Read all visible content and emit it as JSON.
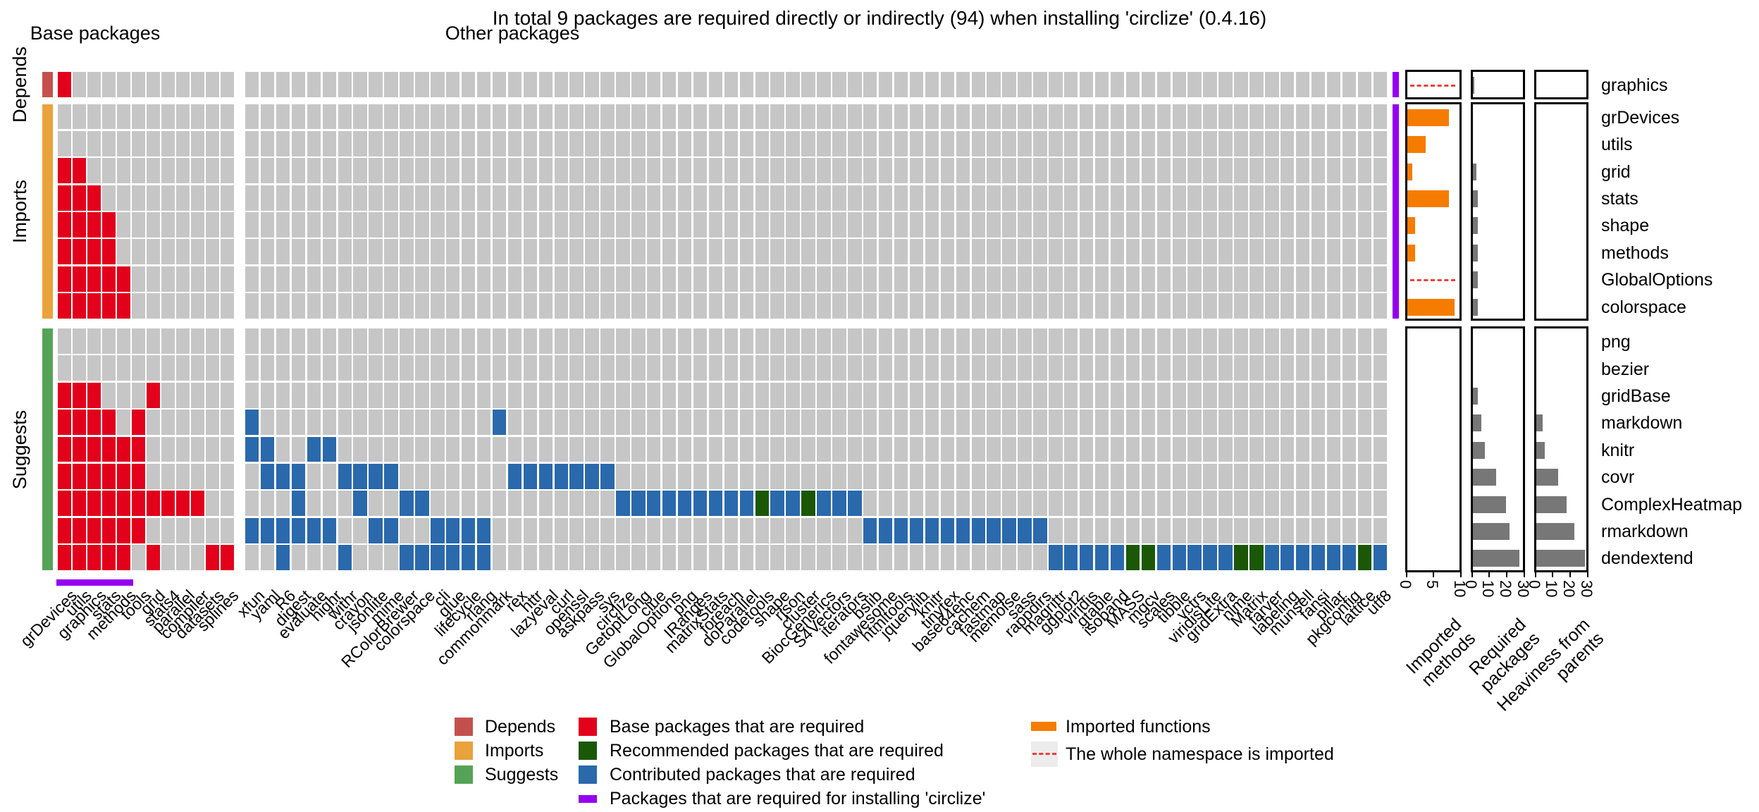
{
  "chart_data": {
    "type": "heatmap",
    "title": "In total 9 packages are required directly or indirectly (94) when installing 'circlize' (0.4.16)",
    "column_group_headers": {
      "base": "Base packages",
      "other": "Other packages"
    },
    "row_groups": [
      {
        "name": "Depends",
        "color": "#C4504E",
        "n_rows": 1
      },
      {
        "name": "Imports",
        "color": "#E9A23C",
        "n_rows": 8
      },
      {
        "name": "Suggests",
        "color": "#55A356",
        "n_rows": 9
      }
    ],
    "base_columns": [
      "grDevices",
      "utils",
      "graphics",
      "stats",
      "methods",
      "tools",
      "grid",
      "stats4",
      "parallel",
      "compiler",
      "datasets",
      "splines"
    ],
    "other_columns": [
      "xfun",
      "yaml",
      "R6",
      "digest",
      "evaluate",
      "highr",
      "withr",
      "crayon",
      "jsonlite",
      "mime",
      "RColorBrewer",
      "colorspace",
      "cli",
      "glue",
      "lifecycle",
      "rlang",
      "commonmark",
      "rex",
      "httr",
      "lazyeval",
      "curl",
      "openssl",
      "askpass",
      "sys",
      "circlize",
      "GetoptLong",
      "clue",
      "GlobalOptions",
      "png",
      "IRanges",
      "matrixStats",
      "foreach",
      "doParallel",
      "codetools",
      "shape",
      "rjson",
      "cluster",
      "BiocGenerics",
      "S4Vectors",
      "iterators",
      "bslib",
      "fontawesome",
      "htmltools",
      "jquerylib",
      "knitr",
      "tinytex",
      "base64enc",
      "cachem",
      "fastmap",
      "memoise",
      "sass",
      "rappdirs",
      "magrittr",
      "ggplot2",
      "viridis",
      "gtable",
      "isoband",
      "MASS",
      "mgcv",
      "scales",
      "tibble",
      "vctrs",
      "viridisLite",
      "gridExtra",
      "nlme",
      "Matrix",
      "farver",
      "labeling",
      "munsell",
      "fansi",
      "pillar",
      "pkgconfig",
      "lattice",
      "utf8"
    ],
    "rows": [
      {
        "name": "graphics",
        "group": "Depends",
        "base_red": [
          1
        ],
        "other_blue": [],
        "other_green": [],
        "whole_namespace": true,
        "imported_methods": 0,
        "required_packages": 1,
        "heaviness": 0
      },
      {
        "name": "grDevices",
        "group": "Imports",
        "base_red": [],
        "other_blue": [],
        "other_green": [],
        "whole_namespace": false,
        "imported_methods": 8,
        "required_packages": 0,
        "heaviness": 0
      },
      {
        "name": "utils",
        "group": "Imports",
        "base_red": [],
        "other_blue": [],
        "other_green": [],
        "whole_namespace": false,
        "imported_methods": 3.5,
        "required_packages": 0,
        "heaviness": 0
      },
      {
        "name": "grid",
        "group": "Imports",
        "base_red": [
          1,
          2
        ],
        "other_blue": [],
        "other_green": [],
        "whole_namespace": false,
        "imported_methods": 1,
        "required_packages": 2,
        "heaviness": 0
      },
      {
        "name": "stats",
        "group": "Imports",
        "base_red": [
          1,
          2,
          3
        ],
        "other_blue": [],
        "other_green": [],
        "whole_namespace": false,
        "imported_methods": 8,
        "required_packages": 3,
        "heaviness": 0
      },
      {
        "name": "shape",
        "group": "Imports",
        "base_red": [
          1,
          2,
          3,
          4
        ],
        "other_blue": [],
        "other_green": [],
        "whole_namespace": false,
        "imported_methods": 1.5,
        "required_packages": 3,
        "heaviness": 0
      },
      {
        "name": "methods",
        "group": "Imports",
        "base_red": [
          1,
          2,
          3,
          4
        ],
        "other_blue": [],
        "other_green": [],
        "whole_namespace": false,
        "imported_methods": 1.5,
        "required_packages": 3,
        "heaviness": 0
      },
      {
        "name": "GlobalOptions",
        "group": "Imports",
        "base_red": [
          1,
          2,
          3,
          4,
          5
        ],
        "other_blue": [],
        "other_green": [],
        "whole_namespace": true,
        "imported_methods": 0,
        "required_packages": 3,
        "heaviness": 0
      },
      {
        "name": "colorspace",
        "group": "Imports",
        "base_red": [
          1,
          2,
          3,
          4,
          5
        ],
        "other_blue": [],
        "other_green": [],
        "whole_namespace": false,
        "imported_methods": 9,
        "required_packages": 3,
        "heaviness": 0
      },
      {
        "name": "png",
        "group": "Suggests",
        "base_red": [],
        "other_blue": [],
        "other_green": [],
        "whole_namespace": false,
        "imported_methods": 0,
        "required_packages": 0,
        "heaviness": 0
      },
      {
        "name": "bezier",
        "group": "Suggests",
        "base_red": [],
        "other_blue": [],
        "other_green": [],
        "whole_namespace": false,
        "imported_methods": 0,
        "required_packages": 0,
        "heaviness": 0
      },
      {
        "name": "gridBase",
        "group": "Suggests",
        "base_red": [
          1,
          2,
          3,
          7
        ],
        "other_blue": [],
        "other_green": [],
        "whole_namespace": false,
        "imported_methods": 0,
        "required_packages": 3,
        "heaviness": 0
      },
      {
        "name": "markdown",
        "group": "Suggests",
        "base_red": [
          1,
          2,
          3,
          4,
          6
        ],
        "other_blue": [
          1,
          17
        ],
        "other_green": [],
        "whole_namespace": false,
        "imported_methods": 0,
        "required_packages": 5,
        "heaviness": 4
      },
      {
        "name": "knitr",
        "group": "Suggests",
        "base_red": [
          1,
          2,
          3,
          4,
          5,
          6
        ],
        "other_blue": [
          1,
          2,
          5,
          6
        ],
        "other_green": [],
        "whole_namespace": false,
        "imported_methods": 0,
        "required_packages": 7,
        "heaviness": 5
      },
      {
        "name": "covr",
        "group": "Suggests",
        "base_red": [
          1,
          2,
          3,
          4,
          5,
          6
        ],
        "other_blue": [
          2,
          3,
          4,
          7,
          8,
          9,
          10,
          18,
          19,
          20,
          21,
          22,
          23,
          24
        ],
        "other_green": [],
        "whole_namespace": false,
        "imported_methods": 0,
        "required_packages": 14,
        "heaviness": 13
      },
      {
        "name": "ComplexHeatmap",
        "group": "Suggests",
        "base_red": [
          1,
          2,
          3,
          4,
          5,
          6,
          7,
          8,
          9,
          10
        ],
        "other_blue": [
          4,
          8,
          11,
          12,
          25,
          26,
          27,
          28,
          29,
          30,
          31,
          32,
          33,
          35,
          36,
          38,
          39,
          40
        ],
        "other_green": [
          34,
          37
        ],
        "whole_namespace": false,
        "imported_methods": 0,
        "required_packages": 20,
        "heaviness": 18
      },
      {
        "name": "rmarkdown",
        "group": "Suggests",
        "base_red": [
          1,
          2,
          3,
          4,
          5,
          6
        ],
        "other_blue": [
          1,
          2,
          3,
          4,
          5,
          6,
          9,
          10,
          13,
          14,
          15,
          16,
          41,
          42,
          43,
          44,
          45,
          46,
          47,
          48,
          49,
          50,
          51,
          52
        ],
        "other_green": [],
        "whole_namespace": false,
        "imported_methods": 0,
        "required_packages": 22,
        "heaviness": 23
      },
      {
        "name": "dendextend",
        "group": "Suggests",
        "base_red": [
          1,
          2,
          3,
          4,
          5,
          7,
          11,
          12
        ],
        "other_blue": [
          3,
          7,
          11,
          12,
          13,
          14,
          15,
          16,
          53,
          54,
          55,
          56,
          57,
          60,
          61,
          62,
          63,
          64,
          67,
          68,
          69,
          70,
          71,
          72,
          74
        ],
        "other_green": [
          58,
          59,
          65,
          66,
          73
        ],
        "whole_namespace": false,
        "imported_methods": 0,
        "required_packages": 28,
        "heaviness": 29
      }
    ],
    "panels": [
      {
        "title": "Imported methods",
        "title_lines": [
          "Imported",
          "methods"
        ],
        "max": 10,
        "ticks": [
          0,
          5,
          10
        ],
        "metric": "imported_methods",
        "bar_color": "#F67C01",
        "namespace_line": true
      },
      {
        "title": "Required packages",
        "title_lines": [
          "Required",
          "packages"
        ],
        "max": 30,
        "ticks": [
          0,
          10,
          20,
          30
        ],
        "metric": "required_packages",
        "bar_color": "#777777",
        "namespace_line": false
      },
      {
        "title": "Heaviness from parents",
        "title_lines": [
          "Heaviness from",
          "parents"
        ],
        "max": 30,
        "ticks": [
          0,
          10,
          20,
          30
        ],
        "metric": "heaviness",
        "bar_color": "#777777",
        "namespace_line": false
      }
    ],
    "cell_colors": {
      "empty": "#C6C6C6",
      "base_required": "#E2001B",
      "recommended_required": "#1A5807",
      "contributed_required": "#2A69AC",
      "install_required_mark": "#9400F0"
    },
    "legend": {
      "row_groups": [
        {
          "label": "Depends",
          "color": "#C4504E"
        },
        {
          "label": "Imports",
          "color": "#E9A23C"
        },
        {
          "label": "Suggests",
          "color": "#55A356"
        }
      ],
      "cell_types": [
        {
          "label": "Base packages that are required",
          "color": "#E2001B",
          "shape": "square"
        },
        {
          "label": "Recommended packages that are required",
          "color": "#1A5807",
          "shape": "square"
        },
        {
          "label": "Contributed packages that are required",
          "color": "#2A69AC",
          "shape": "square"
        },
        {
          "label": "Packages that are required for installing 'circlize'",
          "color": "#9400F0",
          "shape": "bar"
        }
      ],
      "marks": [
        {
          "label": "Imported functions",
          "color": "#F67C01",
          "shape": "bar"
        },
        {
          "label": "The whole namespace is imported",
          "shape": "dashed_line",
          "line_color": "#E8413C",
          "bg": "#ECECEC"
        }
      ]
    }
  }
}
